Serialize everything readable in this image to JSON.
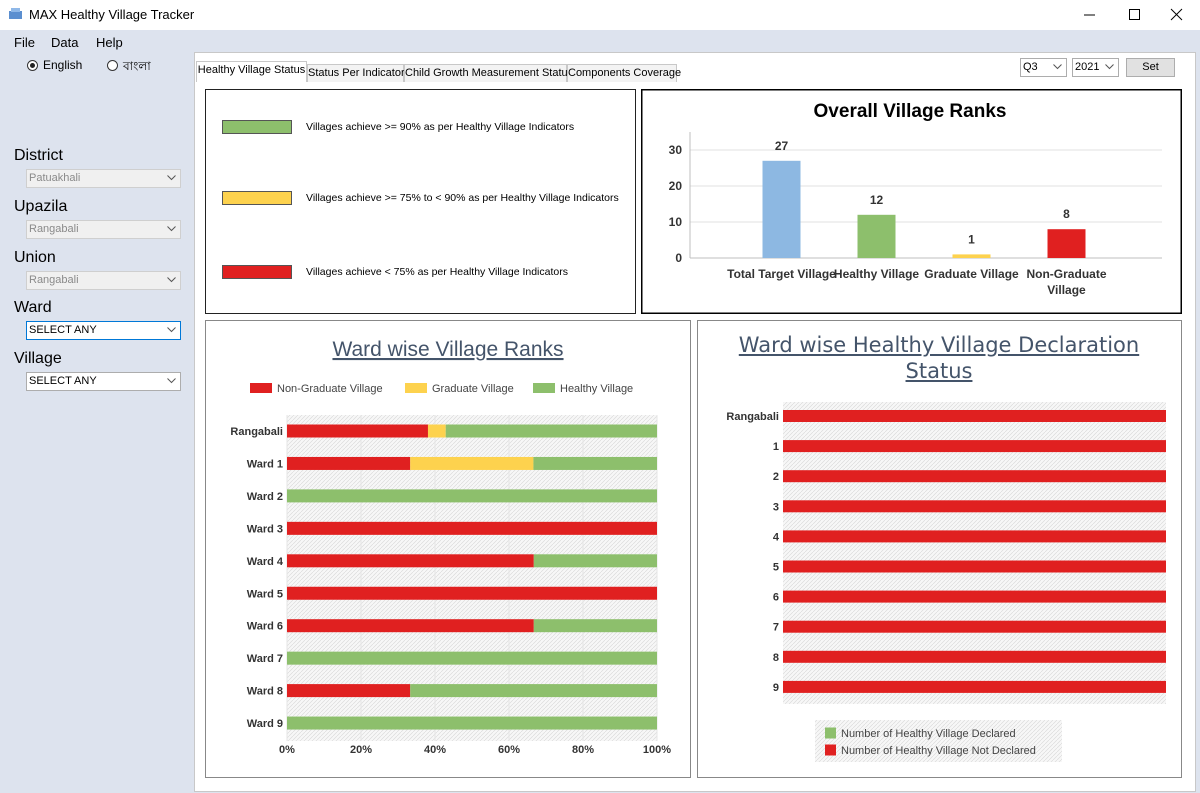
{
  "window": {
    "title": "MAX Healthy Village Tracker"
  },
  "menu": [
    "File",
    "Data",
    "Help"
  ],
  "language": {
    "options": [
      "English",
      "বাংলা"
    ],
    "selected": 0
  },
  "filters": [
    {
      "label": "District",
      "value": "Patuakhali",
      "enabled": false
    },
    {
      "label": "Upazila",
      "value": "Rangabali",
      "enabled": false
    },
    {
      "label": "Union",
      "value": "Rangabali",
      "enabled": false
    },
    {
      "label": "Ward",
      "value": "SELECT ANY",
      "enabled": true
    },
    {
      "label": "Village",
      "value": "SELECT ANY",
      "enabled": true
    }
  ],
  "tabs": {
    "items": [
      "Healthy Village Status",
      "Status Per Indicator",
      "Child Growth Measurement Status",
      "Components Coverage"
    ],
    "selected": 0
  },
  "period": {
    "quarter": "Q3",
    "year": "2021",
    "button": "Set"
  },
  "status_legend": [
    {
      "color": "#8dbf6c",
      "label": "Villages achieve >= 90% as per Healthy Village Indicators"
    },
    {
      "color": "#fdd24e",
      "label": "Villages achieve >= 75% to < 90% as per Healthy Village Indicators"
    },
    {
      "color": "#e02020",
      "label": "Villages achieve < 75% as per Healthy Village Indicators"
    }
  ],
  "charts": [
    {
      "type": "bar",
      "title": "Overall Village Ranks",
      "categories": [
        "Total Target Village",
        "Healthy Village",
        "Graduate Village",
        "Non-Graduate Village"
      ],
      "values": [
        27,
        12,
        1,
        8
      ],
      "colors": [
        "#8db8e2",
        "#8dbf6c",
        "#fdd24e",
        "#e02020"
      ],
      "ylim": [
        0,
        35
      ],
      "yticks": [
        0,
        10,
        20,
        30
      ],
      "grid": true
    },
    {
      "type": "barh_stacked",
      "title": "Ward wise Village Ranks",
      "categories": [
        "Rangabali",
        "Ward 1",
        "Ward 2",
        "Ward 3",
        "Ward 4",
        "Ward 5",
        "Ward 6",
        "Ward 7",
        "Ward 8",
        "Ward 9"
      ],
      "series": [
        {
          "name": "Non-Graduate Village",
          "color": "#e02020",
          "values": [
            38.1,
            33.3,
            0,
            100,
            66.7,
            100,
            66.7,
            0,
            33.3,
            0
          ]
        },
        {
          "name": "Graduate Village",
          "color": "#fdd24e",
          "values": [
            4.8,
            33.3,
            0,
            0,
            0,
            0,
            0,
            0,
            0,
            0
          ]
        },
        {
          "name": "Healthy Village",
          "color": "#8dbf6c",
          "values": [
            57.1,
            33.4,
            100,
            0,
            33.3,
            0,
            33.3,
            100,
            66.7,
            100
          ]
        }
      ],
      "xlim": [
        0,
        100
      ],
      "xticks": [
        {
          "value": 0,
          "label": "0%"
        },
        {
          "value": 20,
          "label": "20%"
        },
        {
          "value": 40,
          "label": "40%"
        },
        {
          "value": 60,
          "label": "60%"
        },
        {
          "value": 80,
          "label": "80%"
        },
        {
          "value": 100,
          "label": "100%"
        }
      ],
      "legend": "top"
    },
    {
      "type": "barh_stacked",
      "title": "Ward wise Healthy Village Declaration Status",
      "categories": [
        "Rangabali",
        "1",
        "2",
        "3",
        "4",
        "5",
        "6",
        "7",
        "8",
        "9"
      ],
      "series": [
        {
          "name": "Number of Healthy Village Declared",
          "color": "#8dbf6c",
          "values": [
            0,
            0,
            0,
            0,
            0,
            0,
            0,
            0,
            0,
            0
          ]
        },
        {
          "name": "Number of Healthy Village Not Declared",
          "color": "#e02020",
          "values": [
            100,
            100,
            100,
            100,
            100,
            100,
            100,
            100,
            100,
            100
          ]
        }
      ],
      "xlim": [
        0,
        100
      ],
      "legend": "bottom"
    }
  ]
}
